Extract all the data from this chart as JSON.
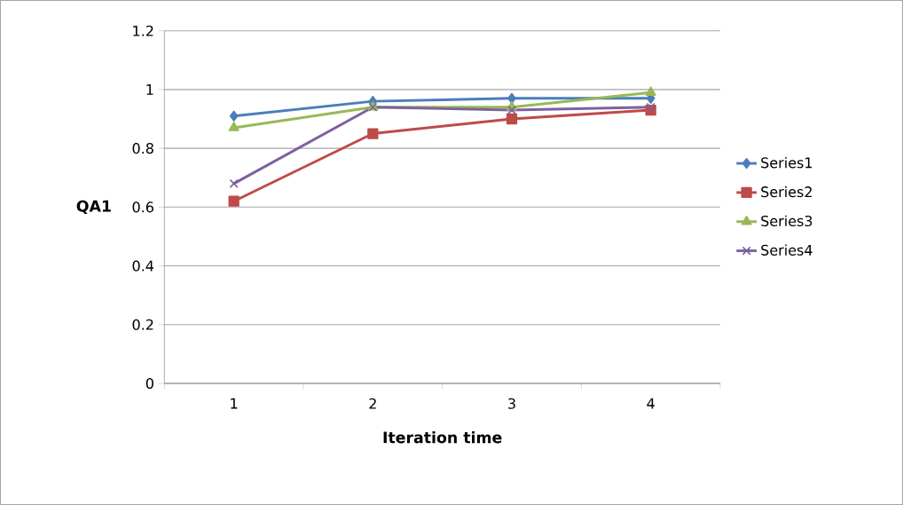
{
  "chart_data": {
    "type": "line",
    "xlabel": "Iteration time",
    "ylabel": "QA1",
    "categories": [
      "1",
      "2",
      "3",
      "4"
    ],
    "series": [
      {
        "name": "Series1",
        "color": "#4a7ebb",
        "marker": "diamond",
        "values": [
          0.91,
          0.96,
          0.97,
          0.97
        ]
      },
      {
        "name": "Series2",
        "color": "#be4b48",
        "marker": "square",
        "values": [
          0.62,
          0.85,
          0.9,
          0.93
        ]
      },
      {
        "name": "Series3",
        "color": "#98b954",
        "marker": "triangle",
        "values": [
          0.87,
          0.94,
          0.94,
          0.99
        ]
      },
      {
        "name": "Series4",
        "color": "#7d60a0",
        "marker": "cross",
        "values": [
          0.68,
          0.94,
          0.93,
          0.94
        ]
      }
    ],
    "ylim": [
      0,
      1.2
    ],
    "yticks": [
      0,
      0.2,
      0.4,
      0.6,
      0.8,
      1,
      1.2
    ],
    "grid": "y",
    "legend": "right"
  }
}
